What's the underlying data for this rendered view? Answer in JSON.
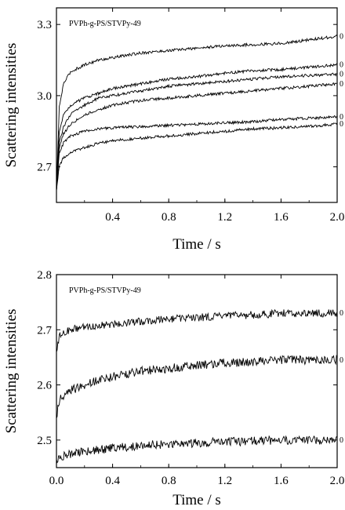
{
  "chart_data": [
    {
      "type": "line",
      "annotation": "PVPh-g-PS/STVPy-49",
      "xlabel": "Time / s",
      "ylabel": "Scattering intensities",
      "xlim": [
        0.0,
        2.0
      ],
      "ylim": [
        2.55,
        3.37
      ],
      "xticks": [
        0.4,
        0.8,
        1.2,
        1.6,
        2.0
      ],
      "xtick_labels": [
        "0.4",
        "0.8",
        "1.2",
        "1.6",
        "2.0"
      ],
      "yticks": [
        2.7,
        3.0,
        3.3
      ],
      "ytick_labels": [
        "2.7",
        "3.0",
        "3.3"
      ],
      "grid": false,
      "series": [
        {
          "end_label": "0",
          "x": [
            0.0,
            0.02,
            0.05,
            0.1,
            0.2,
            0.3,
            0.4,
            0.6,
            0.8,
            1.0,
            1.2,
            1.4,
            1.6,
            1.8,
            2.0
          ],
          "y": [
            2.6,
            2.95,
            3.05,
            3.1,
            3.13,
            3.15,
            3.16,
            3.18,
            3.19,
            3.2,
            3.21,
            3.215,
            3.22,
            3.235,
            3.25
          ],
          "noise": 0.006
        },
        {
          "end_label": "0",
          "x": [
            0.0,
            0.02,
            0.05,
            0.1,
            0.2,
            0.3,
            0.4,
            0.6,
            0.8,
            1.0,
            1.2,
            1.4,
            1.6,
            1.8,
            2.0
          ],
          "y": [
            2.6,
            2.85,
            2.92,
            2.96,
            2.99,
            3.01,
            3.03,
            3.05,
            3.07,
            3.08,
            3.095,
            3.105,
            3.11,
            3.12,
            3.13
          ],
          "noise": 0.006
        },
        {
          "end_label": "0",
          "x": [
            0.0,
            0.02,
            0.05,
            0.1,
            0.2,
            0.3,
            0.4,
            0.6,
            0.8,
            1.0,
            1.2,
            1.4,
            1.6,
            1.8,
            2.0
          ],
          "y": [
            2.6,
            2.8,
            2.87,
            2.92,
            2.96,
            2.99,
            3.0,
            3.02,
            3.04,
            3.05,
            3.06,
            3.07,
            3.08,
            3.085,
            3.09
          ],
          "noise": 0.006
        },
        {
          "end_label": "0",
          "x": [
            0.0,
            0.02,
            0.05,
            0.1,
            0.2,
            0.3,
            0.4,
            0.6,
            0.8,
            1.0,
            1.2,
            1.4,
            1.6,
            1.8,
            2.0
          ],
          "y": [
            2.6,
            2.78,
            2.84,
            2.88,
            2.92,
            2.94,
            2.96,
            2.98,
            2.99,
            3.0,
            3.01,
            3.02,
            3.03,
            3.04,
            3.05
          ],
          "noise": 0.006
        },
        {
          "end_label": "0",
          "x": [
            0.0,
            0.02,
            0.05,
            0.1,
            0.2,
            0.3,
            0.4,
            0.6,
            0.8,
            1.0,
            1.2,
            1.4,
            1.6,
            1.8,
            2.0
          ],
          "y": [
            2.6,
            2.76,
            2.8,
            2.83,
            2.85,
            2.86,
            2.865,
            2.87,
            2.875,
            2.88,
            2.885,
            2.89,
            2.9,
            2.905,
            2.91
          ],
          "noise": 0.006
        },
        {
          "end_label": "0",
          "x": [
            0.0,
            0.02,
            0.05,
            0.1,
            0.2,
            0.3,
            0.4,
            0.6,
            0.8,
            1.0,
            1.2,
            1.4,
            1.6,
            1.8,
            2.0
          ],
          "y": [
            2.6,
            2.7,
            2.74,
            2.76,
            2.78,
            2.8,
            2.81,
            2.82,
            2.83,
            2.84,
            2.85,
            2.86,
            2.865,
            2.87,
            2.88
          ],
          "noise": 0.006
        }
      ]
    },
    {
      "type": "line",
      "annotation": "PVPh-g-PS/STVPy-49",
      "xlabel": "Time / s",
      "ylabel": "Scattering intensities",
      "xlim": [
        0.0,
        2.0
      ],
      "ylim": [
        2.45,
        2.8
      ],
      "xticks": [
        0.0,
        0.4,
        0.8,
        1.2,
        1.6,
        2.0
      ],
      "xtick_labels": [
        "0.0",
        "0.4",
        "0.8",
        "1.2",
        "1.6",
        "2.0"
      ],
      "yticks": [
        2.5,
        2.6,
        2.7,
        2.8
      ],
      "ytick_labels": [
        "2.5",
        "2.6",
        "2.7",
        "2.8"
      ],
      "grid": false,
      "series": [
        {
          "end_label": "0",
          "x": [
            0.0,
            0.01,
            0.03,
            0.06,
            0.1,
            0.2,
            0.4,
            0.6,
            0.8,
            1.0,
            1.2,
            1.4,
            1.6,
            1.8,
            2.0
          ],
          "y": [
            2.66,
            2.68,
            2.69,
            2.695,
            2.7,
            2.705,
            2.71,
            2.715,
            2.72,
            2.722,
            2.725,
            2.727,
            2.73,
            2.73,
            2.73
          ],
          "noise": 0.007
        },
        {
          "end_label": "0",
          "x": [
            0.0,
            0.01,
            0.03,
            0.06,
            0.1,
            0.2,
            0.4,
            0.6,
            0.8,
            1.0,
            1.2,
            1.4,
            1.6,
            1.8,
            2.0
          ],
          "y": [
            2.54,
            2.56,
            2.575,
            2.585,
            2.59,
            2.6,
            2.615,
            2.625,
            2.63,
            2.635,
            2.64,
            2.642,
            2.645,
            2.645,
            2.645
          ],
          "noise": 0.008
        },
        {
          "end_label": "0",
          "x": [
            0.0,
            0.01,
            0.05,
            0.1,
            0.2,
            0.4,
            0.6,
            0.8,
            1.0,
            1.2,
            1.4,
            1.6,
            1.8,
            2.0
          ],
          "y": [
            2.465,
            2.468,
            2.47,
            2.475,
            2.48,
            2.485,
            2.49,
            2.493,
            2.495,
            2.497,
            2.498,
            2.5,
            2.5,
            2.5
          ],
          "noise": 0.008
        }
      ]
    }
  ]
}
